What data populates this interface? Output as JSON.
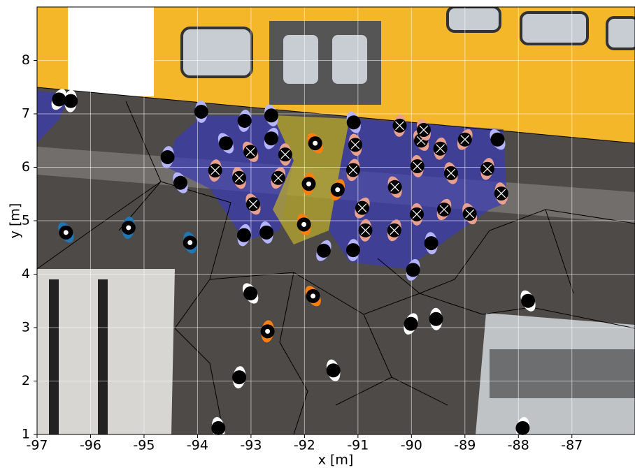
{
  "chart_data": {
    "type": "scatter",
    "xlabel": "x [m]",
    "ylabel": "y [m]",
    "xlim": [
      -97,
      -85.82
    ],
    "ylim": [
      1,
      9
    ],
    "xticks": [
      -97,
      -96,
      -95,
      -94,
      -93,
      -92,
      -91,
      -90,
      -89,
      -88,
      -87
    ],
    "yticks": [
      1,
      2,
      3,
      4,
      5,
      6,
      7,
      8
    ],
    "grid": true,
    "series": [
      {
        "color": "#e9a18f",
        "marker": "cross",
        "x": [
          -93.01,
          -93.67,
          -93.22,
          -92.49,
          -92.36,
          -92.96,
          -91.09,
          -91.05,
          -90.92,
          -90.86,
          -90.31,
          -90.32,
          -89.89,
          -89.82,
          -89.46,
          -89.26,
          -89.39,
          -89.9,
          -88.91,
          -88.58,
          -88.32,
          -89.0,
          -90.22,
          -89.77
        ],
        "values": [
          6.29,
          5.94,
          5.8,
          5.8,
          6.24,
          5.31,
          5.95,
          6.42,
          5.24,
          4.82,
          5.63,
          4.82,
          6.02,
          6.5,
          6.35,
          5.89,
          5.21,
          5.12,
          5.13,
          5.97,
          5.51,
          6.52,
          6.78,
          6.7
        ]
      },
      {
        "color": "#b4b4ff",
        "marker": "dot",
        "x": [
          -93.47,
          -93.12,
          -92.62,
          -92.62,
          -93.93,
          -94.32,
          -93.13,
          -92.71,
          -91.64,
          -91.09,
          -91.08,
          -89.97,
          -89.63,
          -88.39,
          -94.56
        ],
        "values": [
          6.45,
          6.87,
          6.97,
          6.54,
          7.04,
          5.71,
          4.73,
          4.78,
          4.44,
          4.45,
          6.84,
          4.08,
          4.58,
          6.52,
          6.19
        ]
      },
      {
        "color": "#ff7f0e",
        "marker": "ring",
        "x": [
          -91.8,
          -91.92,
          -92.01,
          -91.38
        ],
        "values": [
          6.45,
          5.69,
          4.93,
          5.58
        ]
      },
      {
        "color": "#1f77b4",
        "marker": "ring",
        "x": [
          -96.46,
          -95.29,
          -94.14
        ],
        "values": [
          4.78,
          4.87,
          4.59
        ]
      },
      {
        "color": "#ff7f0e",
        "marker": "ring",
        "x": [
          -91.84,
          -92.69
        ],
        "values": [
          3.59,
          2.93
        ]
      },
      {
        "color": "#ffffff",
        "marker": "dot",
        "x": [
          -93.01,
          -93.22,
          -91.46,
          -90.01,
          -89.54,
          -87.82,
          -87.92,
          -93.61,
          -96.59,
          -96.37
        ],
        "values": [
          3.64,
          2.07,
          2.2,
          3.07,
          3.16,
          3.5,
          1.12,
          1.12,
          7.27,
          7.24
        ]
      }
    ]
  }
}
